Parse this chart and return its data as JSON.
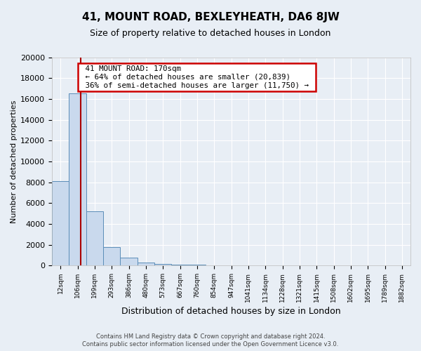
{
  "title": "41, MOUNT ROAD, BEXLEYHEATH, DA6 8JW",
  "subtitle": "Size of property relative to detached houses in London",
  "xlabel": "Distribution of detached houses by size in London",
  "ylabel": "Number of detached properties",
  "bin_labels": [
    "12sqm",
    "106sqm",
    "199sqm",
    "293sqm",
    "386sqm",
    "480sqm",
    "573sqm",
    "667sqm",
    "760sqm",
    "854sqm",
    "947sqm",
    "1041sqm",
    "1134sqm",
    "1228sqm",
    "1321sqm",
    "1415sqm",
    "1508sqm",
    "1602sqm",
    "1695sqm",
    "1789sqm",
    "1882sqm"
  ],
  "bar_heights": [
    8100,
    16500,
    5200,
    1750,
    750,
    300,
    150,
    100,
    70,
    0,
    0,
    0,
    0,
    0,
    0,
    0,
    0,
    0,
    0,
    0,
    0
  ],
  "bar_color": "#c9d9ed",
  "bar_edge_color": "#5b8db8",
  "property_line_x": 1.68,
  "annotation_title": "41 MOUNT ROAD: 170sqm",
  "annotation_line1": "← 64% of detached houses are smaller (20,839)",
  "annotation_line2": "36% of semi-detached houses are larger (11,750) →",
  "annotation_box_edge": "#cc0000",
  "vline_color": "#aa0000",
  "ylim": [
    0,
    20000
  ],
  "yticks": [
    0,
    2000,
    4000,
    6000,
    8000,
    10000,
    12000,
    14000,
    16000,
    18000,
    20000
  ],
  "footer_line1": "Contains HM Land Registry data © Crown copyright and database right 2024.",
  "footer_line2": "Contains public sector information licensed under the Open Government Licence v3.0.",
  "bg_color": "#e8eef5",
  "plot_bg_color": "#e8eef5",
  "grid_color": "#ffffff",
  "title_fontsize": 11,
  "subtitle_fontsize": 9,
  "ylabel_fontsize": 8,
  "xlabel_fontsize": 9,
  "ytick_fontsize": 8,
  "xtick_fontsize": 6.5
}
